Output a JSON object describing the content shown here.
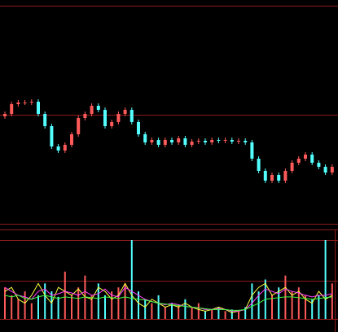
{
  "chart_data": [
    {
      "type": "candlestick",
      "up_color": "#ff5a5a",
      "down_color": "#54ffff",
      "ylim": [
        0,
        268
      ],
      "open": [
        132,
        135,
        147,
        149,
        149,
        150,
        135,
        120,
        95,
        90,
        97,
        110,
        130,
        135,
        145,
        140,
        120,
        125,
        135,
        140,
        125,
        110,
        100,
        103,
        97,
        103,
        100,
        105,
        97,
        101,
        102,
        100,
        103,
        102,
        103,
        101,
        102,
        100,
        80,
        65,
        53,
        60,
        53,
        65,
        75,
        80,
        85,
        75,
        70,
        63
      ],
      "high": [
        138,
        150,
        152,
        152,
        153,
        153,
        138,
        123,
        98,
        100,
        113,
        133,
        138,
        148,
        148,
        143,
        128,
        138,
        143,
        143,
        128,
        113,
        106,
        106,
        106,
        106,
        108,
        108,
        104,
        105,
        105,
        106,
        106,
        106,
        106,
        105,
        105,
        103,
        83,
        68,
        63,
        63,
        68,
        78,
        83,
        88,
        88,
        78,
        73,
        73
      ],
      "low": [
        129,
        132,
        144,
        146,
        146,
        132,
        117,
        92,
        87,
        87,
        94,
        107,
        127,
        132,
        137,
        117,
        117,
        122,
        132,
        122,
        107,
        97,
        97,
        94,
        94,
        97,
        97,
        94,
        94,
        98,
        97,
        97,
        99,
        99,
        98,
        98,
        97,
        77,
        62,
        50,
        50,
        50,
        50,
        62,
        72,
        77,
        72,
        67,
        60,
        60
      ],
      "close": [
        135,
        147,
        149,
        149,
        150,
        135,
        120,
        95,
        90,
        97,
        110,
        130,
        135,
        145,
        140,
        120,
        125,
        135,
        140,
        125,
        110,
        100,
        103,
        97,
        103,
        100,
        105,
        97,
        101,
        102,
        100,
        103,
        102,
        103,
        101,
        102,
        100,
        80,
        65,
        53,
        60,
        53,
        65,
        75,
        80,
        85,
        75,
        70,
        63,
        70
      ]
    },
    {
      "type": "bar",
      "ylim": [
        0,
        100
      ],
      "values": [
        40,
        30,
        25,
        35,
        20,
        30,
        45,
        35,
        28,
        60,
        30,
        40,
        55,
        30,
        45,
        30,
        35,
        40,
        45,
        100,
        35,
        25,
        20,
        30,
        15,
        20,
        18,
        25,
        15,
        20,
        10,
        12,
        15,
        10,
        12,
        10,
        15,
        45,
        35,
        50,
        30,
        40,
        55,
        35,
        40,
        30,
        25,
        30,
        100,
        45
      ],
      "series": [
        {
          "color": "#ffff40",
          "values": [
            35,
            40,
            25,
            20,
            30,
            45,
            30,
            20,
            40,
            35,
            30,
            38,
            28,
            25,
            40,
            35,
            25,
            30,
            45,
            30,
            20,
            15,
            25,
            20,
            15,
            18,
            15,
            20,
            15,
            12,
            10,
            12,
            15,
            12,
            8,
            10,
            12,
            30,
            40,
            45,
            30,
            35,
            40,
            30,
            35,
            25,
            20,
            35,
            25,
            30
          ]
        },
        {
          "color": "#ff40ff",
          "values": [
            40,
            35,
            30,
            28,
            25,
            35,
            38,
            30,
            32,
            35,
            33,
            30,
            35,
            30,
            32,
            38,
            30,
            28,
            40,
            35,
            30,
            25,
            22,
            20,
            18,
            20,
            18,
            16,
            15,
            14,
            12,
            12,
            13,
            12,
            10,
            10,
            12,
            20,
            30,
            38,
            35,
            32,
            38,
            35,
            33,
            30,
            28,
            30,
            30,
            32
          ]
        },
        {
          "color": "#40ff40",
          "values": [
            30,
            28,
            30,
            26,
            25,
            28,
            30,
            28,
            26,
            28,
            27,
            26,
            28,
            27,
            26,
            28,
            27,
            26,
            28,
            26,
            25,
            24,
            22,
            20,
            19,
            18,
            17,
            16,
            15,
            14,
            13,
            12,
            12,
            12,
            11,
            11,
            12,
            16,
            20,
            25,
            26,
            27,
            28,
            28,
            27,
            26,
            25,
            26,
            27,
            28
          ]
        }
      ]
    }
  ]
}
